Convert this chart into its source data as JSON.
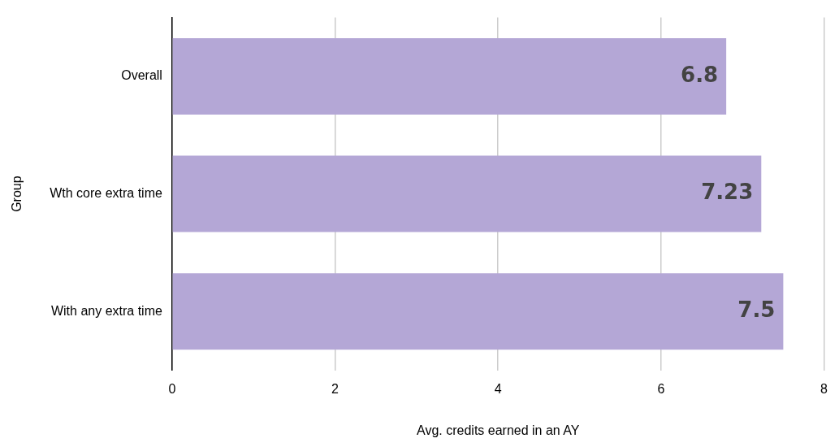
{
  "chart_data": {
    "type": "bar",
    "orientation": "horizontal",
    "categories": [
      "Overall",
      "Wth core extra time",
      "With any extra time"
    ],
    "values": [
      6.8,
      7.23,
      7.5
    ],
    "color": "#b4a7d6",
    "xlabel": "Avg. credits earned in an AY",
    "ylabel": "Group",
    "xlim": [
      0,
      8
    ],
    "xticks": [
      0,
      2,
      4,
      6,
      8
    ],
    "grid": "x",
    "legend": false,
    "data_labels": true
  }
}
